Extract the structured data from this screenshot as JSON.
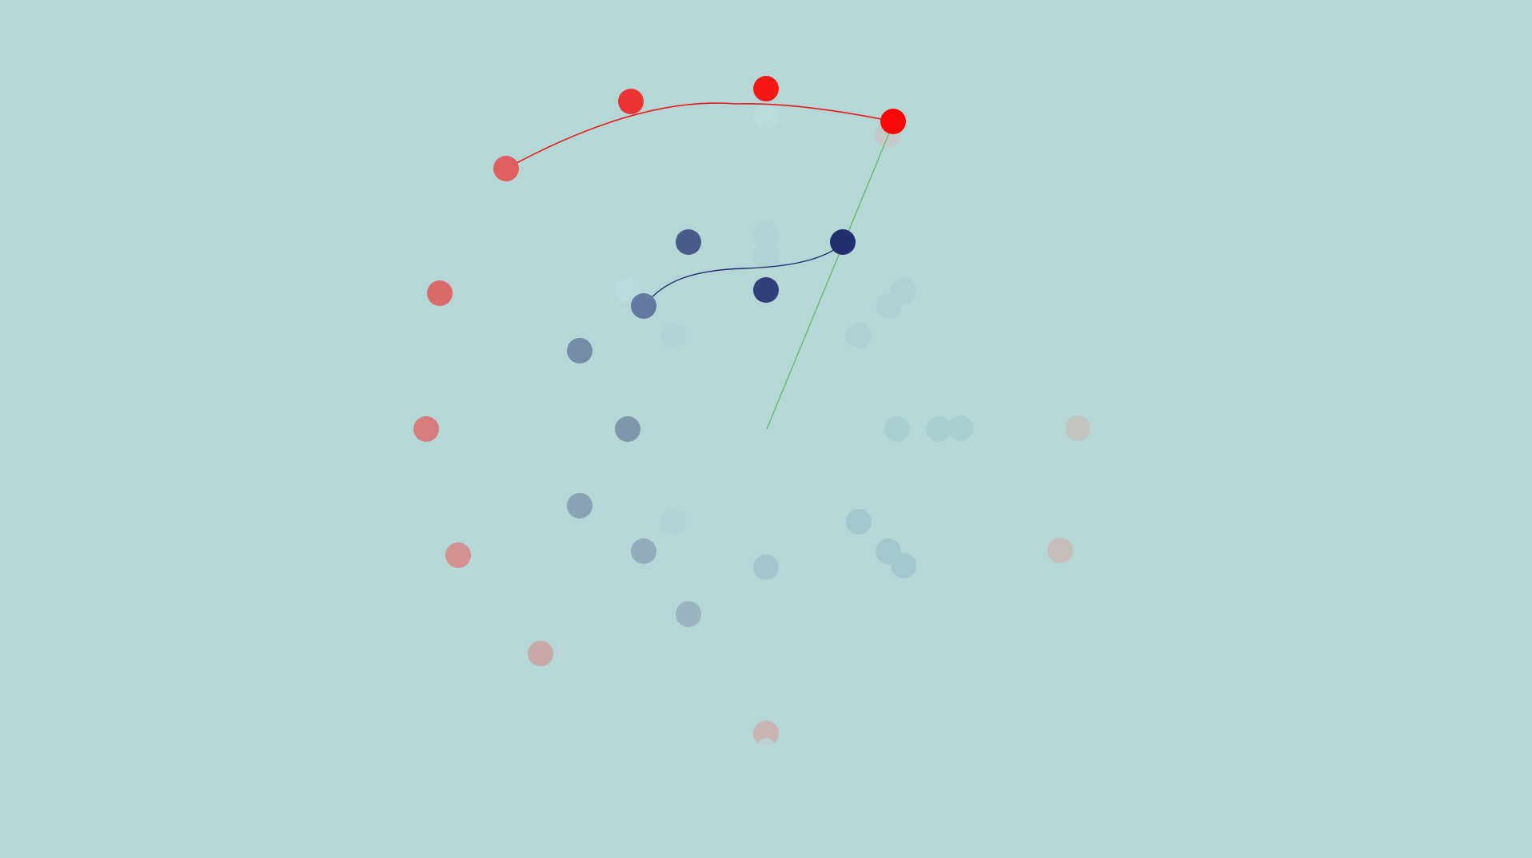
{
  "scene": {
    "background": "#b5d7d6",
    "colors": {
      "red": "#ff0000",
      "navy": "#1f2a6b",
      "green": "#5cb85c",
      "ghost_teal": "#a6cfcf",
      "ghost_grey": "#c2bfbd",
      "ghost_pink": "#cfa7a7"
    }
  }
}
